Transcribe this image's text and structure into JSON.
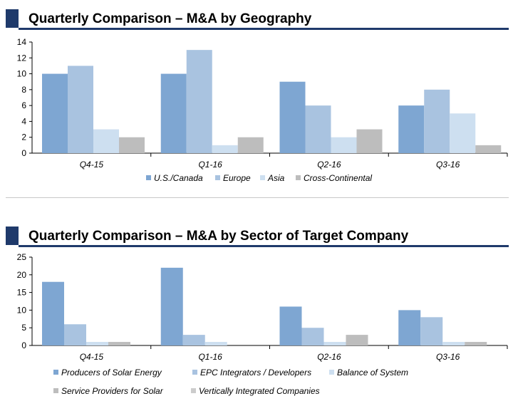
{
  "colors": {
    "header_navy": "#1f3a6b",
    "series": [
      "#7ea6d2",
      "#a9c3e0",
      "#cddff0",
      "#bdbdbd",
      "#cccccc"
    ]
  },
  "chart_data": [
    {
      "type": "bar",
      "title": "Quarterly Comparison – M&A by Geography",
      "categories": [
        "Q4-15",
        "Q1-16",
        "Q2-16",
        "Q3-16"
      ],
      "series": [
        {
          "name": "U.S./Canada",
          "values": [
            10,
            10,
            9,
            6
          ]
        },
        {
          "name": "Europe",
          "values": [
            11,
            13,
            6,
            8
          ]
        },
        {
          "name": "Asia",
          "values": [
            3,
            1,
            2,
            5
          ]
        },
        {
          "name": "Cross-Continental",
          "values": [
            2,
            2,
            3,
            1
          ]
        }
      ],
      "ylim": [
        0,
        14
      ],
      "yticks": [
        "0",
        "2",
        "4",
        "6",
        "8",
        "10",
        "12",
        "14"
      ],
      "grid": false,
      "legend": "bottom"
    },
    {
      "type": "bar",
      "title": "Quarterly Comparison – M&A by Sector of Target Company",
      "categories": [
        "Q4-15",
        "Q1-16",
        "Q2-16",
        "Q3-16"
      ],
      "series": [
        {
          "name": "Producers of Solar Energy",
          "values": [
            18,
            22,
            11,
            10
          ]
        },
        {
          "name": "EPC Integrators / Developers",
          "values": [
            6,
            3,
            5,
            8
          ]
        },
        {
          "name": "Balance of System",
          "values": [
            1,
            1,
            1,
            1
          ]
        },
        {
          "name": "Service Providers for Solar",
          "values": [
            1,
            0,
            3,
            1
          ]
        },
        {
          "name": "Vertically Integrated Companies",
          "values": [
            0,
            0,
            0,
            0
          ]
        }
      ],
      "ylim": [
        0,
        25
      ],
      "yticks": [
        "0",
        "5",
        "10",
        "15",
        "20",
        "25"
      ],
      "grid": false,
      "legend": "bottom"
    }
  ]
}
